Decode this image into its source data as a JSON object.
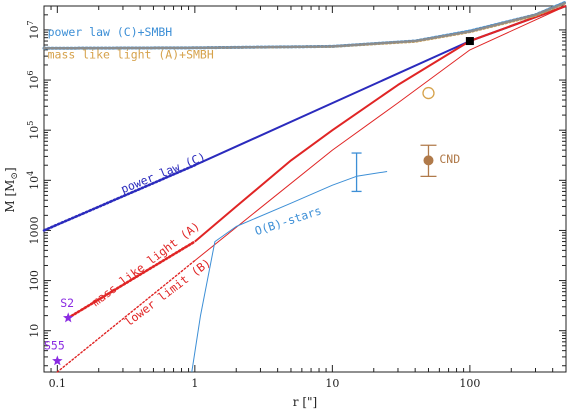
{
  "chart_data": {
    "type": "line",
    "xlabel": "r [\"]",
    "ylabel": "M [M",
    "ylabel_sub": "⊙",
    "ylabel_tail": "]",
    "xscale": "log",
    "yscale": "log",
    "xlim": [
      0.08,
      500
    ],
    "ylim": [
      1.5,
      30000000
    ],
    "x_ticks": [
      {
        "v": 0.1,
        "label": "0.1"
      },
      {
        "v": 1,
        "label": "1"
      },
      {
        "v": 10,
        "label": "10"
      },
      {
        "v": 100,
        "label": "100"
      }
    ],
    "y_ticks": [
      {
        "v": 10,
        "label": "10",
        "exp": ""
      },
      {
        "v": 100,
        "label": "100",
        "exp": ""
      },
      {
        "v": 1000,
        "label": "1000",
        "exp": ""
      },
      {
        "v": 10000,
        "label": "10",
        "exp": "4"
      },
      {
        "v": 100000,
        "label": "10",
        "exp": "5"
      },
      {
        "v": 1000000,
        "label": "10",
        "exp": "6"
      },
      {
        "v": 10000000,
        "label": "10",
        "exp": "7"
      }
    ],
    "colors": {
      "blue": "#2b2bbd",
      "red": "#e02525",
      "lightblue": "#3d8fd6",
      "orange": "#d6a24b",
      "brown": "#b07a4a",
      "purple": "#8a2be2",
      "gray": "#8c8c8c",
      "black": "#000000"
    },
    "series": [
      {
        "name": "power law (C)",
        "color": "blue",
        "style": "solid",
        "width": 2,
        "points": [
          [
            1,
            20000
          ],
          [
            100,
            6000000
          ],
          [
            500,
            30000000
          ]
        ]
      },
      {
        "color": "blue",
        "style": "dotted",
        "width": 2.6,
        "points": [
          [
            0.08,
            1000
          ],
          [
            1,
            20000
          ]
        ]
      },
      {
        "name": "mass like light (A)",
        "color": "red",
        "style": "solid",
        "width": 2,
        "points": [
          [
            1,
            600
          ],
          [
            2,
            3000
          ],
          [
            5,
            25000
          ],
          [
            10,
            100000
          ],
          [
            30,
            800000
          ],
          [
            100,
            6000000
          ],
          [
            500,
            30000000
          ]
        ]
      },
      {
        "color": "red",
        "style": "dotted",
        "width": 2.6,
        "points": [
          [
            0.12,
            18
          ],
          [
            1,
            600
          ]
        ]
      },
      {
        "name": "lower limit (B)",
        "color": "red",
        "style": "solid",
        "width": 1,
        "points": [
          [
            1,
            250
          ],
          [
            10,
            40000
          ],
          [
            30,
            350000
          ],
          [
            100,
            4000000
          ],
          [
            500,
            30000000
          ]
        ]
      },
      {
        "color": "red",
        "style": "dotted",
        "width": 1.4,
        "points": [
          [
            0.1,
            1.5
          ],
          [
            1,
            250
          ]
        ]
      },
      {
        "name": "O(B)-stars",
        "color": "lightblue",
        "style": "solid",
        "width": 1,
        "points": [
          [
            0.95,
            1.5
          ],
          [
            1.1,
            20
          ],
          [
            1.4,
            600
          ],
          [
            2,
            1200
          ],
          [
            5,
            3500
          ],
          [
            10,
            8000
          ],
          [
            15,
            12000
          ],
          [
            25,
            15000
          ]
        ]
      },
      {
        "name": "power law (C)+SMBH",
        "color": "lightblue",
        "style": "dotted",
        "width": 3,
        "points": [
          [
            0.08,
            4300000
          ],
          [
            1,
            4400000
          ],
          [
            10,
            4700000
          ],
          [
            40,
            6000000
          ],
          [
            100,
            9500000
          ],
          [
            300,
            20000000
          ],
          [
            500,
            36000000
          ]
        ]
      },
      {
        "name": "mass like light (A)+SMBH",
        "color": "orange",
        "style": "dotted",
        "width": 2,
        "points": [
          [
            0.08,
            4300000
          ],
          [
            1,
            4350000
          ],
          [
            10,
            4600000
          ],
          [
            40,
            5800000
          ],
          [
            100,
            9000000
          ],
          [
            300,
            19000000
          ],
          [
            500,
            34000000
          ]
        ]
      },
      {
        "color": "gray",
        "style": "dotted",
        "width": 2.5,
        "points": [
          [
            0.08,
            4300000
          ],
          [
            1,
            4400000
          ],
          [
            10,
            4700000
          ],
          [
            40,
            6000000
          ],
          [
            100,
            9300000
          ],
          [
            300,
            20000000
          ],
          [
            500,
            35000000
          ]
        ]
      }
    ],
    "markers": [
      {
        "name": "S2",
        "x": 0.12,
        "y": 18,
        "shape": "star",
        "color": "purple"
      },
      {
        "name": "S55",
        "x": 0.1,
        "y": 2.5,
        "shape": "star",
        "color": "purple"
      },
      {
        "x": 100,
        "y": 6000000,
        "shape": "square",
        "color": "black"
      },
      {
        "x": 50,
        "y": 550000,
        "shape": "open-circle",
        "color": "orange"
      },
      {
        "name": "CND",
        "x": 50,
        "y": 25000,
        "shape": "filled-circle",
        "color": "brown",
        "err_low": 12000,
        "err_high": 50000
      }
    ],
    "errorbars": [
      {
        "x": 15,
        "y": 14000,
        "low": 6000,
        "high": 35000,
        "color": "lightblue"
      }
    ],
    "annotations": [
      {
        "text": "power law (C)+SMBH",
        "color": "lightblue",
        "x": 0.085,
        "y": 7500000,
        "rotate": 0
      },
      {
        "text": "mass like light (A)+SMBH",
        "color": "orange",
        "x": 0.085,
        "y": 2700000,
        "rotate": 0
      },
      {
        "text": "power law (C)",
        "color": "blue",
        "x": 0.3,
        "y": 5500,
        "rotate": -22
      },
      {
        "text": "mass like light (A)",
        "color": "red",
        "x": 0.19,
        "y": 30,
        "rotate": -37
      },
      {
        "text": "lower limit (B)",
        "color": "red",
        "x": 0.33,
        "y": 12,
        "rotate": -37
      },
      {
        "text": "O(B)-stars",
        "color": "lightblue",
        "x": 2.8,
        "y": 800,
        "rotate": -18
      },
      {
        "text": "CND",
        "color": "brown",
        "x": 60,
        "y": 22000,
        "rotate": 0
      },
      {
        "text": "S2",
        "color": "purple",
        "x": 0.105,
        "y": 30,
        "rotate": 0
      },
      {
        "text": "S55",
        "color": "purple",
        "x": 0.08,
        "y": 4.2,
        "rotate": 0
      }
    ]
  }
}
